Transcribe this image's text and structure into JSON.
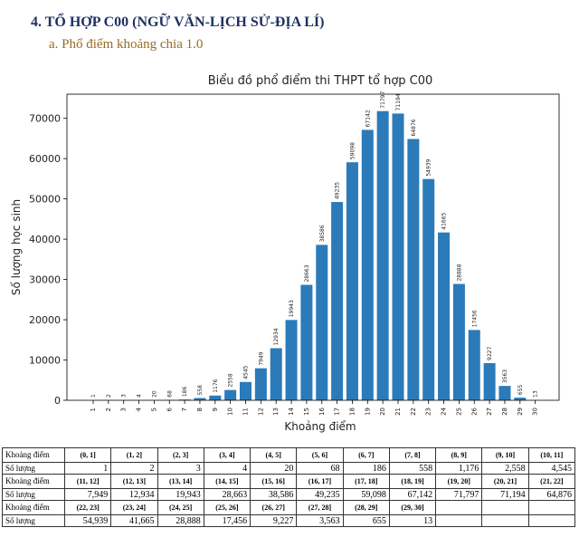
{
  "heading": "4.  TỔ HỢP C00 (NGỮ VĂN-LỊCH SỬ-ĐỊA LÍ)",
  "subheading": "a.   Phổ điểm khoảng chia 1.0",
  "chart_data": {
    "type": "bar",
    "title": "Biểu đồ phổ điểm thi THPT tổ hợp C00",
    "xlabel": "Khoảng điểm",
    "ylabel": "Số lượng học sinh",
    "categories": [
      "1",
      "2",
      "3",
      "4",
      "5",
      "6",
      "7",
      "8",
      "9",
      "10",
      "11",
      "12",
      "13",
      "14",
      "15",
      "16",
      "17",
      "18",
      "19",
      "20",
      "21",
      "22",
      "23",
      "24",
      "25",
      "26",
      "27",
      "28",
      "29",
      "30"
    ],
    "values": [
      1,
      2,
      3,
      4,
      20,
      68,
      186,
      558,
      1176,
      2558,
      4545,
      7949,
      12934,
      19943,
      28663,
      38586,
      49235,
      59098,
      67142,
      71797,
      71194,
      64876,
      54939,
      41665,
      28888,
      17456,
      9227,
      3563,
      655,
      13
    ],
    "yticks": [
      "0",
      "10000",
      "20000",
      "30000",
      "40000",
      "50000",
      "60000",
      "70000"
    ],
    "ylim": [
      0,
      76000
    ],
    "grid": false,
    "bar_color": "#2b7bba"
  },
  "table": {
    "range_label": "Khoảng điểm",
    "count_label": "Số lượng",
    "rows": [
      {
        "ranges": [
          "(0, 1]",
          "(1, 2]",
          "(2, 3]",
          "(3, 4]",
          "(4, 5]",
          "(5, 6]",
          "(6, 7]",
          "(7, 8]",
          "(8, 9]",
          "(9, 10]",
          "(10, 11]"
        ],
        "counts": [
          "1",
          "2",
          "3",
          "4",
          "20",
          "68",
          "186",
          "558",
          "1,176",
          "2,558",
          "4,545"
        ]
      },
      {
        "ranges": [
          "(11, 12]",
          "(12, 13]",
          "(13, 14]",
          "(14, 15]",
          "(15, 16]",
          "(16, 17]",
          "(17, 18]",
          "(18, 19]",
          "(19, 20]",
          "(20, 21]",
          "(21, 22]"
        ],
        "counts": [
          "7,949",
          "12,934",
          "19,943",
          "28,663",
          "38,586",
          "49,235",
          "59,098",
          "67,142",
          "71,797",
          "71,194",
          "64,876"
        ]
      },
      {
        "ranges": [
          "(22, 23]",
          "(23, 24]",
          "(24, 25]",
          "(25, 26]",
          "(26, 27]",
          "(27, 28]",
          "(28, 29]",
          "(29, 30]",
          "",
          "",
          ""
        ],
        "counts": [
          "54,939",
          "41,665",
          "28,888",
          "17,456",
          "9,227",
          "3,563",
          "655",
          "13",
          "",
          "",
          ""
        ]
      }
    ]
  }
}
